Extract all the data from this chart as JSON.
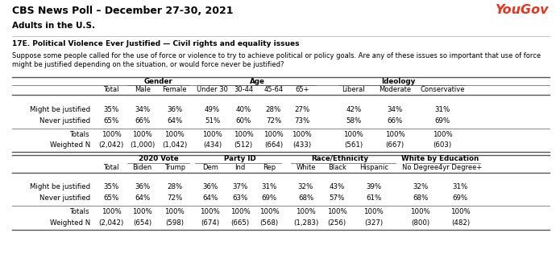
{
  "title": "CBS News Poll – December 27-30, 2021",
  "subtitle": "Adults in the U.S.",
  "yougov_text": "YouGov",
  "question_bold": "17E. Political Violence Ever Justified — Civil rights and equality issues",
  "question_text": "Suppose some people called for the use of force or violence to try to achieve political or policy goals. Are any of these issues so important that use of force\nmight be justified depending on the situation, or would force never be justified?",
  "table1": {
    "col_headers": [
      "Total",
      "Male",
      "Female",
      "Under 30",
      "30-44",
      "45-64",
      "65+",
      "Liberal",
      "Moderate",
      "Conservative"
    ],
    "rows": [
      {
        "label": "Might be justified",
        "values": [
          "35%",
          "34%",
          "36%",
          "49%",
          "40%",
          "28%",
          "27%",
          "42%",
          "34%",
          "31%"
        ]
      },
      {
        "label": "Never justified",
        "values": [
          "65%",
          "66%",
          "64%",
          "51%",
          "60%",
          "72%",
          "73%",
          "58%",
          "66%",
          "69%"
        ]
      }
    ],
    "totals_row": [
      "100%",
      "100%",
      "100%",
      "100%",
      "100%",
      "100%",
      "100%",
      "100%",
      "100%",
      "100%"
    ],
    "weightedn_row": [
      "(2,042)",
      "(1,000)",
      "(1,042)",
      "(434)",
      "(512)",
      "(664)",
      "(433)",
      "(561)",
      "(667)",
      "(603)"
    ]
  },
  "table2": {
    "col_headers": [
      "Total",
      "Biden",
      "Trump",
      "Dem",
      "Ind",
      "Rep",
      "White",
      "Black",
      "Hispanic",
      "No Degree",
      "4yr Degree+"
    ],
    "rows": [
      {
        "label": "Might be justified",
        "values": [
          "35%",
          "36%",
          "28%",
          "36%",
          "37%",
          "31%",
          "32%",
          "43%",
          "39%",
          "32%",
          "31%"
        ]
      },
      {
        "label": "Never justified",
        "values": [
          "65%",
          "64%",
          "72%",
          "64%",
          "63%",
          "69%",
          "68%",
          "57%",
          "61%",
          "68%",
          "69%"
        ]
      }
    ],
    "totals_row": [
      "100%",
      "100%",
      "100%",
      "100%",
      "100%",
      "100%",
      "100%",
      "100%",
      "100%",
      "100%",
      "100%"
    ],
    "weightedn_row": [
      "(2,042)",
      "(654)",
      "(598)",
      "(674)",
      "(665)",
      "(568)",
      "(1,283)",
      "(256)",
      "(327)",
      "(800)",
      "(482)"
    ]
  },
  "bg_color": "#ffffff",
  "yougov_color": "#e8341c",
  "title_color": "#000000",
  "text_color": "#000000",
  "header_color": "#000000",
  "line_color": "#555555"
}
